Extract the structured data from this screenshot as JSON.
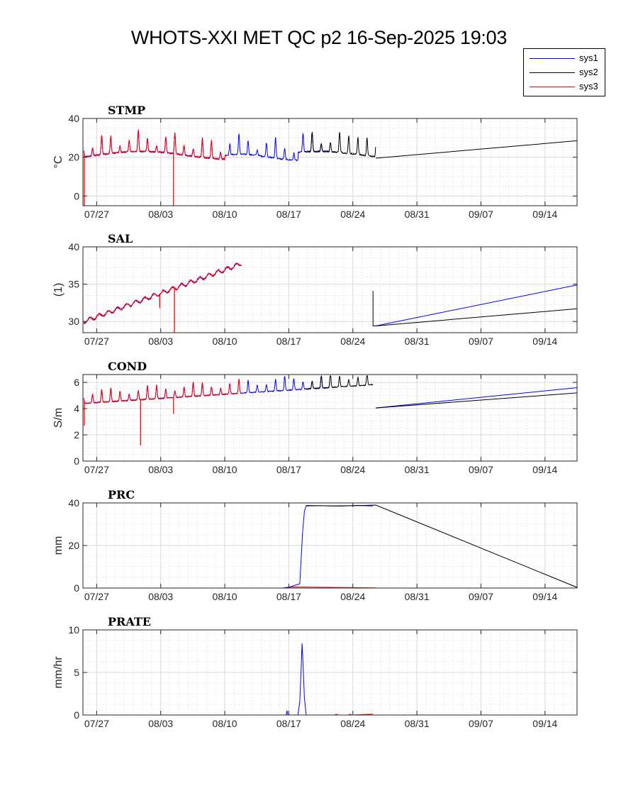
{
  "page": {
    "title": "WHOTS-XXI MET QC p2 16-Sep-2025 19:03"
  },
  "legend": {
    "items": [
      {
        "label": "sys1",
        "color": "#0000ff"
      },
      {
        "label": "sys2",
        "color": "#000000"
      },
      {
        "label": "sys3",
        "color": "#ff0000"
      }
    ]
  },
  "chart_data": [
    {
      "type": "line",
      "title": "STMP",
      "ylabel": "°C",
      "ylim": [
        -5,
        40
      ],
      "yticks": [
        0,
        20,
        40
      ],
      "xlim": [
        -1.5,
        52.5
      ],
      "x_unit": "days since 07/27",
      "xticks": [
        {
          "x": 0,
          "label": "07/27"
        },
        {
          "x": 7,
          "label": "08/03"
        },
        {
          "x": 14,
          "label": "08/10"
        },
        {
          "x": 21,
          "label": "08/17"
        },
        {
          "x": 28,
          "label": "08/24"
        },
        {
          "x": 35,
          "label": "08/31"
        },
        {
          "x": 42,
          "label": "09/07"
        },
        {
          "x": 49,
          "label": "09/14"
        }
      ],
      "grid": true,
      "series": [
        {
          "name": "sys1",
          "color": "#0000ff",
          "kind": "stmp",
          "segments": [
            [
              -1.4,
              25.5
            ]
          ]
        },
        {
          "name": "sys2",
          "color": "#000000",
          "kind": "stmp",
          "segments": [
            [
              22.8,
              30.5
            ]
          ],
          "tail": {
            "from": [
              30.5,
              19.5
            ],
            "to": [
              52.5,
              28.5
            ]
          }
        },
        {
          "name": "sys3",
          "color": "#ff0000",
          "kind": "stmp",
          "segments": [
            [
              -1.4,
              14.2
            ]
          ],
          "spikes": [
            {
              "x": -1.35,
              "y": -5
            },
            {
              "x": 8.4,
              "y": -5
            }
          ]
        }
      ]
    },
    {
      "type": "line",
      "title": "SAL",
      "ylabel": "(1)",
      "ylim": [
        28.5,
        40
      ],
      "yticks": [
        30,
        35,
        40
      ],
      "xlim": [
        -1.5,
        52.5
      ],
      "xticks": [
        {
          "x": 0,
          "label": "07/27"
        },
        {
          "x": 7,
          "label": "08/03"
        },
        {
          "x": 14,
          "label": "08/10"
        },
        {
          "x": 21,
          "label": "08/17"
        },
        {
          "x": 28,
          "label": "08/24"
        },
        {
          "x": 35,
          "label": "08/31"
        },
        {
          "x": 42,
          "label": "09/07"
        },
        {
          "x": 49,
          "label": "09/14"
        }
      ],
      "grid": true,
      "series": [
        {
          "name": "sys1",
          "color": "#0000ff",
          "kind": "sal",
          "segments": [
            [
              -1.4,
              15.8
            ]
          ],
          "tail": {
            "from": [
              30.5,
              29.4
            ],
            "to": [
              52.5,
              34.9
            ]
          }
        },
        {
          "name": "sys2",
          "color": "#000000",
          "kind": "sal",
          "segments": [],
          "tail": {
            "from": [
              30.5,
              29.4
            ],
            "to": [
              52.5,
              31.7
            ]
          },
          "drop": {
            "x": 30.2,
            "from": 34.1,
            "to": 29.4
          }
        },
        {
          "name": "sys3",
          "color": "#ff0000",
          "kind": "sal",
          "segments": [
            [
              -1.4,
              15.8
            ]
          ],
          "spikes": [
            {
              "x": 6.9,
              "y": 31.8
            },
            {
              "x": 8.5,
              "y": 28.5
            }
          ]
        }
      ]
    },
    {
      "type": "line",
      "title": "COND",
      "ylabel": "S/m",
      "ylim": [
        0,
        6.6
      ],
      "yticks": [
        0,
        2,
        4,
        6
      ],
      "xlim": [
        -1.5,
        52.5
      ],
      "xticks": [
        {
          "x": 0,
          "label": "07/27"
        },
        {
          "x": 7,
          "label": "08/03"
        },
        {
          "x": 14,
          "label": "08/10"
        },
        {
          "x": 21,
          "label": "08/17"
        },
        {
          "x": 28,
          "label": "08/24"
        },
        {
          "x": 35,
          "label": "08/31"
        },
        {
          "x": 42,
          "label": "09/07"
        },
        {
          "x": 49,
          "label": "09/14"
        }
      ],
      "grid": true,
      "series": [
        {
          "name": "sys1",
          "color": "#0000ff",
          "kind": "cond",
          "segments": [
            [
              -1.4,
              25.5
            ]
          ],
          "tail": {
            "from": [
              30.5,
              4.05
            ],
            "to": [
              52.5,
              5.6
            ]
          }
        },
        {
          "name": "sys2",
          "color": "#000000",
          "kind": "cond",
          "segments": [
            [
              22.8,
              30.2
            ]
          ],
          "tail": {
            "from": [
              30.5,
              4.05
            ],
            "to": [
              52.5,
              5.2
            ]
          }
        },
        {
          "name": "sys3",
          "color": "#ff0000",
          "kind": "cond",
          "segments": [
            [
              -1.4,
              15.8
            ]
          ],
          "spikes": [
            {
              "x": 4.8,
              "y": 1.2
            },
            {
              "x": 8.4,
              "y": 3.6
            },
            {
              "x": -1.35,
              "y": 2.7
            }
          ]
        }
      ]
    },
    {
      "type": "line",
      "title": "PRC",
      "ylabel": "mm",
      "ylim": [
        0,
        40
      ],
      "yticks": [
        0,
        20,
        40
      ],
      "xlim": [
        -1.5,
        52.5
      ],
      "xticks": [
        {
          "x": 0,
          "label": "07/27"
        },
        {
          "x": 7,
          "label": "08/03"
        },
        {
          "x": 14,
          "label": "08/10"
        },
        {
          "x": 21,
          "label": "08/17"
        },
        {
          "x": 28,
          "label": "08/24"
        },
        {
          "x": 35,
          "label": "08/31"
        },
        {
          "x": 42,
          "label": "09/07"
        },
        {
          "x": 49,
          "label": "09/14"
        }
      ],
      "grid": true,
      "series": [
        {
          "name": "sys3",
          "color": "#ff0000",
          "points": [
            [
              -1.4,
              0
            ],
            [
              20.5,
              0
            ],
            [
              21.3,
              0.5
            ],
            [
              30.5,
              0.1
            ]
          ]
        },
        {
          "name": "sys1",
          "color": "#0000ff",
          "points": [
            [
              -1.4,
              0
            ],
            [
              20.3,
              0
            ],
            [
              21.1,
              0.5
            ],
            [
              22.2,
              2.0
            ],
            [
              22.5,
              26
            ],
            [
              22.7,
              36
            ],
            [
              22.9,
              38.6
            ],
            [
              24.5,
              38.7
            ],
            [
              26.5,
              38.5
            ],
            [
              28.5,
              38.8
            ],
            [
              30.2,
              38.6
            ]
          ]
        },
        {
          "name": "sys2",
          "color": "#000000",
          "points": [
            [
              22.9,
              38.8
            ],
            [
              26.0,
              38.6
            ],
            [
              29.0,
              38.8
            ],
            [
              30.5,
              39.0
            ],
            [
              52.5,
              0.3
            ]
          ]
        }
      ]
    },
    {
      "type": "line",
      "title": "PRATE",
      "ylabel": "mm/hr",
      "ylim": [
        0,
        10
      ],
      "yticks": [
        0,
        5,
        10
      ],
      "xlim": [
        -1.5,
        52.5
      ],
      "xticks": [
        {
          "x": 0,
          "label": "07/27"
        },
        {
          "x": 7,
          "label": "08/03"
        },
        {
          "x": 14,
          "label": "08/10"
        },
        {
          "x": 21,
          "label": "08/17"
        },
        {
          "x": 28,
          "label": "08/24"
        },
        {
          "x": 35,
          "label": "08/31"
        },
        {
          "x": 42,
          "label": "09/07"
        },
        {
          "x": 49,
          "label": "09/14"
        }
      ],
      "grid": true,
      "series": [
        {
          "name": "sys3",
          "color": "#ff0000",
          "points": [
            [
              -1.4,
              0
            ],
            [
              26.0,
              0
            ],
            [
              26.2,
              0.1
            ],
            [
              26.4,
              0
            ],
            [
              27.5,
              0
            ],
            [
              27.7,
              0.1
            ],
            [
              27.9,
              0
            ],
            [
              30.2,
              0.1
            ]
          ]
        },
        {
          "name": "sys1",
          "color": "#0000ff",
          "points": [
            [
              -1.4,
              0
            ],
            [
              20.7,
              0
            ],
            [
              20.8,
              0.5
            ],
            [
              20.9,
              0
            ],
            [
              22.0,
              0
            ],
            [
              22.2,
              1.5
            ],
            [
              22.35,
              5.5
            ],
            [
              22.45,
              8.4
            ],
            [
              22.55,
              6.2
            ],
            [
              22.7,
              2.0
            ],
            [
              22.9,
              0
            ],
            [
              30.2,
              0
            ]
          ]
        }
      ]
    }
  ]
}
